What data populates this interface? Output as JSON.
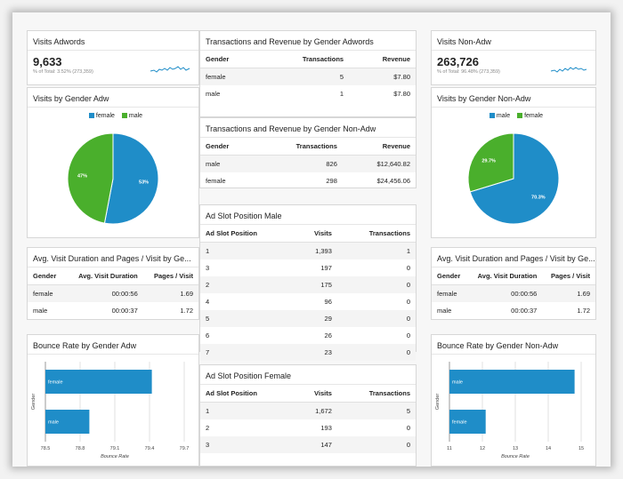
{
  "colors": {
    "blue": "#1f8dc8",
    "green": "#4aaf2c",
    "grid": "#e2e2e2"
  },
  "visits_adwords": {
    "title": "Visits Adwords",
    "value": "9,633",
    "subtext": "% of Total: 3.52% (273,359)"
  },
  "visits_non_adw": {
    "title": "Visits Non-Adw",
    "value": "263,726",
    "subtext": "% of Total: 96.48% (273,359)"
  },
  "tx_rev_adwords": {
    "title": "Transactions and Revenue by Gender Adwords",
    "headers": [
      "Gender",
      "Transactions",
      "Revenue"
    ],
    "rows": [
      [
        "female",
        "5",
        "$7.80"
      ],
      [
        "male",
        "1",
        "$7.80"
      ]
    ]
  },
  "tx_rev_non_adw": {
    "title": "Transactions and Revenue by Gender Non-Adw",
    "headers": [
      "Gender",
      "Transactions",
      "Revenue"
    ],
    "rows": [
      [
        "male",
        "826",
        "$12,640.82"
      ],
      [
        "female",
        "298",
        "$24,456.06"
      ]
    ]
  },
  "ad_slot_male": {
    "title": "Ad Slot Position Male",
    "headers": [
      "Ad Slot Position",
      "Visits",
      "Transactions"
    ],
    "rows": [
      [
        "1",
        "1,393",
        "1"
      ],
      [
        "3",
        "197",
        "0"
      ],
      [
        "2",
        "175",
        "0"
      ],
      [
        "4",
        "96",
        "0"
      ],
      [
        "5",
        "29",
        "0"
      ],
      [
        "6",
        "26",
        "0"
      ],
      [
        "7",
        "23",
        "0"
      ]
    ]
  },
  "ad_slot_female": {
    "title": "Ad Slot Position Female",
    "headers": [
      "Ad Slot Position",
      "Visits",
      "Transactions"
    ],
    "rows": [
      [
        "1",
        "1,672",
        "5"
      ],
      [
        "2",
        "193",
        "0"
      ],
      [
        "3",
        "147",
        "0"
      ]
    ]
  },
  "avg_adw": {
    "title": "Avg. Visit Duration and Pages / Visit by Ge...",
    "headers": [
      "Gender",
      "Avg. Visit Duration",
      "Pages / Visit"
    ],
    "rows": [
      [
        "female",
        "00:00:56",
        "1.69"
      ],
      [
        "male",
        "00:00:37",
        "1.72"
      ]
    ]
  },
  "avg_non_adw": {
    "title": "Avg. Visit Duration and Pages / Visit by Ge...",
    "headers": [
      "Gender",
      "Avg. Visit Duration",
      "Pages / Visit"
    ],
    "rows": [
      [
        "female",
        "00:00:56",
        "1.69"
      ],
      [
        "male",
        "00:00:37",
        "1.72"
      ]
    ]
  },
  "chart_data": [
    {
      "type": "pie",
      "title": "Visits by Gender Adw",
      "legend": [
        "female",
        "male"
      ],
      "slices": [
        {
          "name": "male",
          "value": 53,
          "label": "53%",
          "color": "#1f8dc8"
        },
        {
          "name": "female",
          "value": 47,
          "label": "47%",
          "color": "#4aaf2c"
        }
      ]
    },
    {
      "type": "pie",
      "title": "Visits by Gender Non-Adw",
      "legend": [
        "male",
        "female"
      ],
      "slices": [
        {
          "name": "male",
          "value": 70.3,
          "label": "70.3%",
          "color": "#1f8dc8"
        },
        {
          "name": "female",
          "value": 29.7,
          "label": "29.7%",
          "color": "#4aaf2c"
        }
      ]
    },
    {
      "type": "bar",
      "orientation": "horizontal",
      "title": "Bounce Rate by Gender Adw",
      "categories": [
        "female",
        "male"
      ],
      "values": [
        79.42,
        78.88
      ],
      "xlim": [
        78.5,
        79.7
      ],
      "xticks": [
        "78.5",
        "78.8",
        "79.1",
        "79.4",
        "79.7"
      ],
      "xlabel": "Bounce Rate",
      "ylabel": "Gender"
    },
    {
      "type": "bar",
      "orientation": "horizontal",
      "title": "Bounce Rate by Gender Non-Adw",
      "categories": [
        "male",
        "female"
      ],
      "values": [
        14.8,
        12.1
      ],
      "xlim": [
        11,
        15
      ],
      "xticks": [
        "11",
        "12",
        "13",
        "14",
        "15"
      ],
      "xlabel": "Bounce Rate",
      "ylabel": "Gender"
    }
  ]
}
